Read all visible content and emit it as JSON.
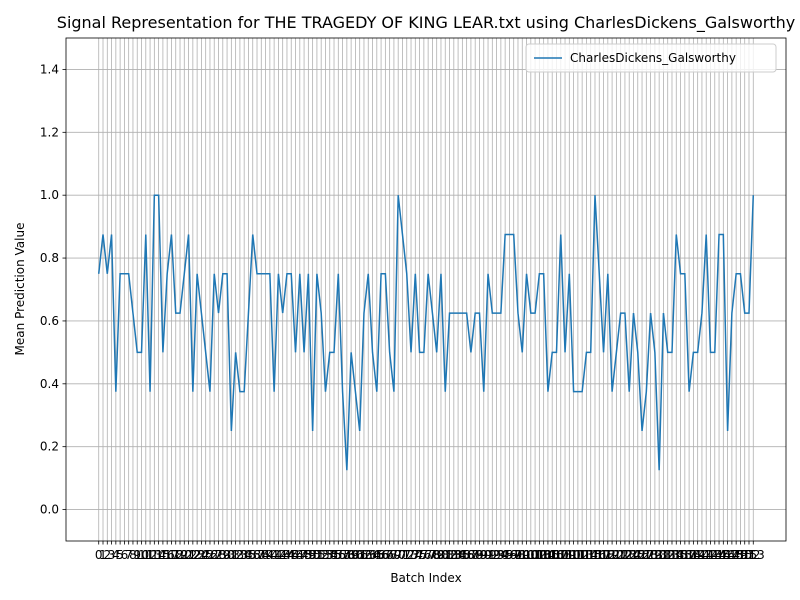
{
  "chart_data": {
    "type": "line",
    "title": "Signal Representation for THE TRAGEDY OF KING LEAR.txt using CharlesDickens_Galsworthy",
    "x_label": "Batch Index",
    "y_label": "Mean Prediction Value",
    "x": [
      0,
      1,
      2,
      3,
      4,
      5,
      6,
      7,
      8,
      9,
      10,
      11,
      12,
      13,
      14,
      15,
      16,
      17,
      18,
      19,
      20,
      21,
      22,
      23,
      24,
      25,
      26,
      27,
      28,
      29,
      30,
      31,
      32,
      33,
      34,
      35,
      36,
      37,
      38,
      39,
      40,
      41,
      42,
      43,
      44,
      45,
      46,
      47,
      48,
      49,
      50,
      51,
      52,
      53,
      54,
      55,
      56,
      57,
      58,
      59,
      60,
      61,
      62,
      63,
      64,
      65,
      66,
      67,
      68,
      69,
      70,
      71,
      72,
      73,
      74,
      75,
      76,
      77,
      78,
      79,
      80,
      81,
      82,
      83,
      84,
      85,
      86,
      87,
      88,
      89,
      90,
      91,
      92,
      93,
      94,
      95,
      96,
      97,
      98,
      99,
      100,
      101,
      102,
      103,
      104,
      105,
      106,
      107,
      108,
      109,
      110,
      111,
      112,
      113,
      114,
      115,
      116,
      117,
      118,
      119,
      120,
      121,
      122,
      123,
      124,
      125,
      126,
      127,
      128,
      129,
      130,
      131,
      132,
      133,
      134,
      135,
      136,
      137,
      138,
      139,
      140,
      141,
      142,
      143,
      144,
      145,
      146,
      147,
      148,
      149,
      150,
      151,
      152,
      153
    ],
    "series": [
      {
        "name": "CharlesDickens_Galsworthy",
        "color": "#1f77b4",
        "values": [
          0.75,
          0.875,
          0.75,
          0.875,
          0.375,
          0.75,
          0.75,
          0.75,
          0.625,
          0.5,
          0.5,
          0.875,
          0.375,
          1.0,
          1.0,
          0.5,
          0.75,
          0.875,
          0.625,
          0.625,
          0.75,
          0.875,
          0.375,
          0.75,
          0.625,
          0.5,
          0.375,
          0.75,
          0.625,
          0.75,
          0.75,
          0.25,
          0.5,
          0.375,
          0.375,
          0.625,
          0.875,
          0.75,
          0.75,
          0.75,
          0.75,
          0.375,
          0.75,
          0.625,
          0.75,
          0.75,
          0.5,
          0.75,
          0.5,
          0.75,
          0.25,
          0.75,
          0.625,
          0.375,
          0.5,
          0.5,
          0.75,
          0.375,
          0.125,
          0.5,
          0.375,
          0.25,
          0.625,
          0.75,
          0.5,
          0.375,
          0.75,
          0.75,
          0.5,
          0.375,
          1.0,
          0.875,
          0.75,
          0.5,
          0.75,
          0.5,
          0.5,
          0.75,
          0.625,
          0.5,
          0.75,
          0.375,
          0.625,
          0.625,
          0.625,
          0.625,
          0.625,
          0.5,
          0.625,
          0.625,
          0.375,
          0.75,
          0.625,
          0.625,
          0.625,
          0.875,
          0.875,
          0.875,
          0.625,
          0.5,
          0.75,
          0.625,
          0.625,
          0.75,
          0.75,
          0.375,
          0.5,
          0.5,
          0.875,
          0.5,
          0.75,
          0.375,
          0.375,
          0.375,
          0.5,
          0.5,
          1.0,
          0.75,
          0.5,
          0.75,
          0.375,
          0.5,
          0.625,
          0.625,
          0.375,
          0.625,
          0.5,
          0.25,
          0.375,
          0.625,
          0.5,
          0.125,
          0.625,
          0.5,
          0.5,
          0.875,
          0.75,
          0.75,
          0.375,
          0.5,
          0.5,
          0.625,
          0.875,
          0.5,
          0.5,
          0.875,
          0.875,
          0.25,
          0.625,
          0.75,
          0.75,
          0.625,
          0.625,
          1.0
        ]
      }
    ],
    "xlim": [
      -7.65,
      160.65
    ],
    "xticks": [
      0,
      1,
      2,
      3,
      4,
      5,
      6,
      7,
      8,
      9,
      10,
      11,
      12,
      13,
      14,
      15,
      16,
      17,
      18,
      19,
      20,
      21,
      22,
      23,
      24,
      25,
      26,
      27,
      28,
      29,
      30,
      31,
      32,
      33,
      34,
      35,
      36,
      37,
      38,
      39,
      40,
      41,
      42,
      43,
      44,
      45,
      46,
      47,
      48,
      49,
      50,
      51,
      52,
      53,
      54,
      55,
      56,
      57,
      58,
      59,
      60,
      61,
      62,
      63,
      64,
      65,
      66,
      67,
      68,
      69,
      70,
      71,
      72,
      73,
      74,
      75,
      76,
      77,
      78,
      79,
      80,
      81,
      82,
      83,
      84,
      85,
      86,
      87,
      88,
      89,
      90,
      91,
      92,
      93,
      94,
      95,
      96,
      97,
      98,
      99,
      100,
      101,
      102,
      103,
      104,
      105,
      106,
      107,
      108,
      109,
      110,
      111,
      112,
      113,
      114,
      115,
      116,
      117,
      118,
      119,
      120,
      121,
      122,
      123,
      124,
      125,
      126,
      127,
      128,
      129,
      130,
      131,
      132,
      133,
      134,
      135,
      136,
      137,
      138,
      139,
      140,
      141,
      142,
      143,
      144,
      145,
      146,
      147,
      148,
      149,
      150,
      151,
      152,
      153
    ],
    "ylim": [
      -0.1,
      1.5
    ],
    "yticks": [
      {
        "value": 0,
        "label": "0.0"
      },
      0.2,
      0.4,
      0.6,
      0.8,
      {
        "value": 1,
        "label": "1.0"
      },
      1.2,
      1.4
    ],
    "grid": true,
    "legend": "upper right"
  }
}
